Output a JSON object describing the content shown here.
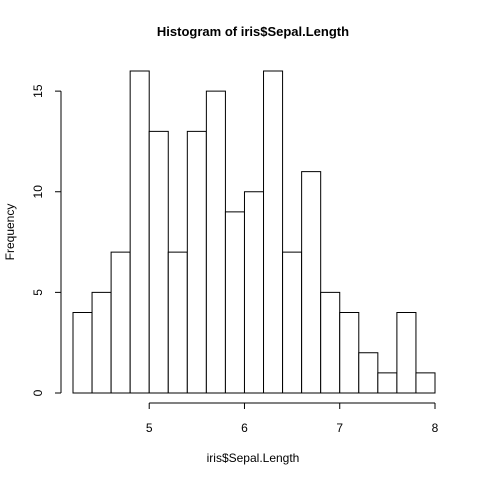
{
  "chart_data": {
    "type": "bar",
    "title": "Histogram of iris$Sepal.Length",
    "xlabel": "iris$Sepal.Length",
    "ylabel": "Frequency",
    "bin_edges": [
      4.2,
      4.4,
      4.6,
      4.8,
      5.0,
      5.2,
      5.4,
      5.6,
      5.8,
      6.0,
      6.2,
      6.4,
      6.6,
      6.8,
      7.0,
      7.2,
      7.4,
      7.6,
      7.8,
      8.0
    ],
    "values": [
      4,
      5,
      7,
      16,
      13,
      7,
      13,
      15,
      9,
      10,
      16,
      7,
      11,
      5,
      4,
      2,
      1,
      4,
      1
    ],
    "xlim": [
      4.2,
      8.0
    ],
    "ylim": [
      0,
      16
    ],
    "x_ticks": [
      5,
      6,
      7,
      8
    ],
    "x_tick_labels": [
      "5",
      "6",
      "7",
      "8"
    ],
    "y_ticks": [
      0,
      5,
      10,
      15
    ],
    "y_tick_labels": [
      "0",
      "5",
      "10",
      "15"
    ],
    "grid": false,
    "bar_fill": "#ffffff",
    "bar_stroke": "#000000"
  }
}
